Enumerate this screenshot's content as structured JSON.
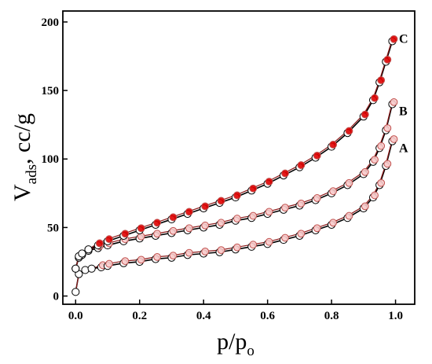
{
  "chart_data": {
    "type": "scatter",
    "title": "",
    "xlabel": "p/p",
    "xlabel_subscript": "o",
    "ylabel_main": "V",
    "ylabel_subscript": "ads",
    "ylabel_unit": ", cc/g",
    "xlim": [
      -0.04,
      1.06
    ],
    "ylim": [
      -6,
      208
    ],
    "xticks": [
      0.0,
      0.2,
      0.4,
      0.6,
      0.8,
      1.0
    ],
    "xtick_labels": [
      "0.0",
      "0.2",
      "0.4",
      "0.6",
      "0.8",
      "1.0"
    ],
    "yticks": [
      0,
      50,
      100,
      150,
      200
    ],
    "ytick_labels": [
      "0",
      "50",
      "100",
      "150",
      "200"
    ],
    "grid": false,
    "legend": "none",
    "series": [
      {
        "label": "A",
        "line_color": "#000000",
        "desorption_line_color": "#8b1a1a",
        "adsorption_marker": "#ffffff",
        "desorption_marker": "#f7c9c9",
        "x": [
          0.0,
          0.01,
          0.03,
          0.05,
          0.08,
          0.1,
          0.15,
          0.2,
          0.25,
          0.3,
          0.35,
          0.4,
          0.45,
          0.5,
          0.55,
          0.6,
          0.65,
          0.7,
          0.75,
          0.8,
          0.85,
          0.9,
          0.93,
          0.95,
          0.97,
          0.99
        ],
        "y": [
          3,
          16,
          19,
          20,
          21,
          22,
          24,
          25,
          27,
          28,
          30,
          31,
          32,
          34,
          36,
          38,
          41,
          44,
          48,
          52,
          57,
          64,
          72,
          81,
          95,
          113
        ]
      },
      {
        "label": "B",
        "line_color": "#000000",
        "desorption_line_color": "#8b1a1a",
        "adsorption_marker": "#ffffff",
        "desorption_marker": "#f7c9c9",
        "x": [
          0.0,
          0.01,
          0.02,
          0.04,
          0.07,
          0.1,
          0.15,
          0.2,
          0.25,
          0.3,
          0.35,
          0.4,
          0.45,
          0.5,
          0.55,
          0.6,
          0.65,
          0.7,
          0.75,
          0.8,
          0.85,
          0.9,
          0.93,
          0.95,
          0.97,
          0.99
        ],
        "y": [
          20,
          28,
          30,
          33,
          35,
          37,
          40,
          42,
          44,
          46,
          48,
          50,
          52,
          55,
          57,
          60,
          63,
          66,
          70,
          75,
          81,
          89,
          98,
          108,
          121,
          140
        ]
      },
      {
        "label": "C",
        "line_color": "#000000",
        "desorption_line_color": "#8b1a1a",
        "adsorption_marker": "#ffffff",
        "desorption_marker": "#e00000",
        "x": [
          0.0,
          0.01,
          0.02,
          0.04,
          0.07,
          0.1,
          0.15,
          0.2,
          0.25,
          0.3,
          0.35,
          0.4,
          0.45,
          0.5,
          0.55,
          0.6,
          0.65,
          0.7,
          0.75,
          0.8,
          0.85,
          0.9,
          0.93,
          0.95,
          0.97,
          0.99
        ],
        "y": [
          20,
          29,
          31,
          34,
          37,
          40,
          44,
          48,
          52,
          56,
          60,
          64,
          68,
          72,
          77,
          82,
          88,
          94,
          101,
          109,
          119,
          131,
          143,
          156,
          171,
          186
        ]
      }
    ]
  }
}
